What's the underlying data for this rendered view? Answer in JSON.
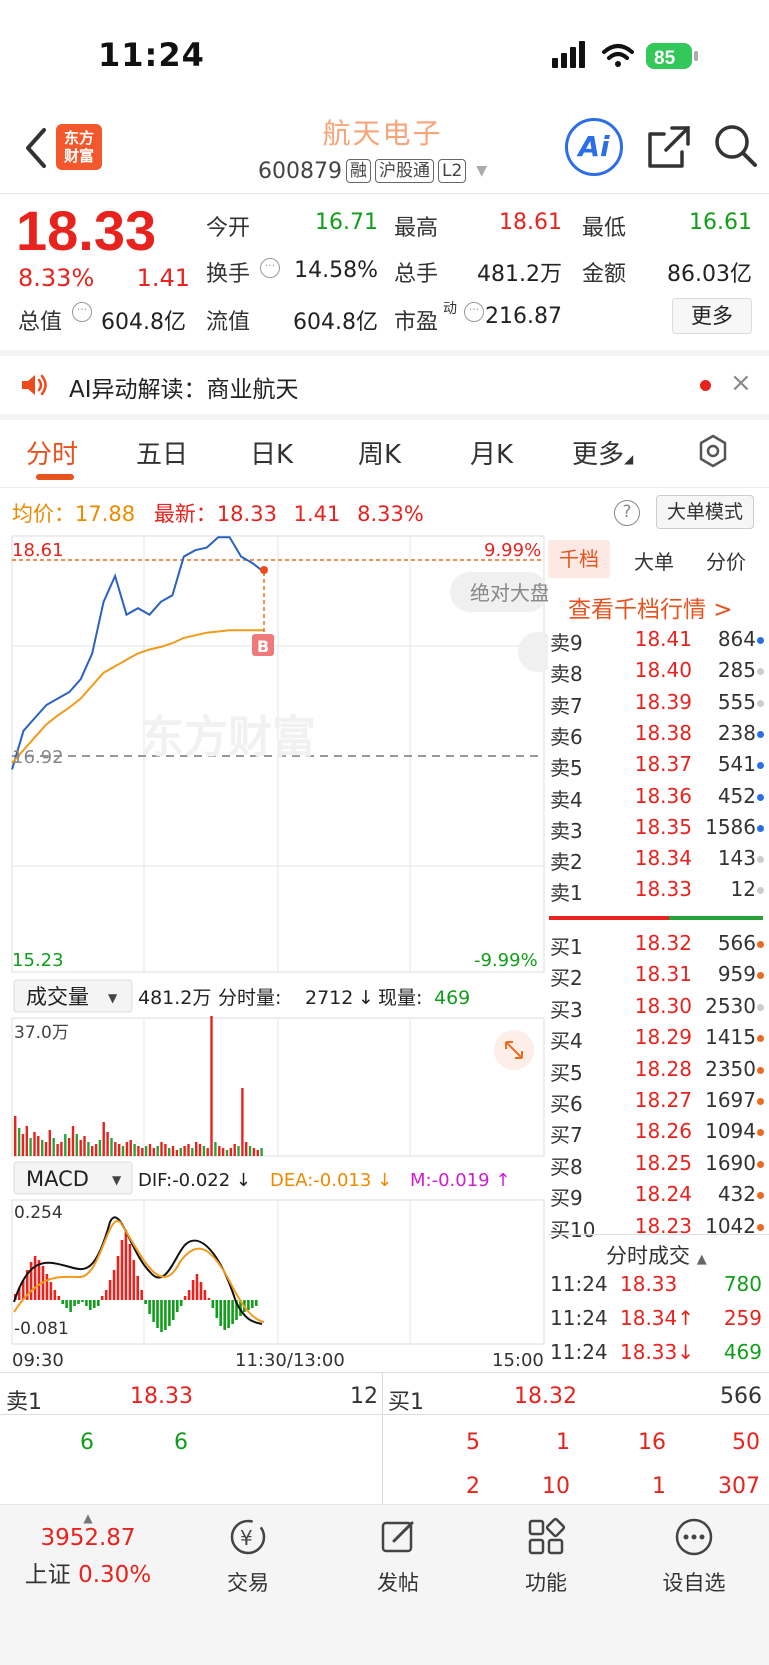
{
  "status": {
    "time": "11:24",
    "battery": "85"
  },
  "header": {
    "logo": [
      "东方",
      "财富"
    ],
    "name": "航天电子",
    "code": "600879",
    "tags": [
      "融",
      "沪股通",
      "L2"
    ]
  },
  "quote": {
    "price": "18.33",
    "change_pct": "8.33%",
    "change": "1.41",
    "fields": [
      {
        "label": "今开",
        "value": "16.71",
        "color": "green"
      },
      {
        "label": "最高",
        "value": "18.61",
        "color": "red"
      },
      {
        "label": "最低",
        "value": "16.61",
        "color": "green"
      },
      {
        "label": "换手",
        "value": "14.58%",
        "color": "black"
      },
      {
        "label": "总手",
        "value": "481.2万",
        "color": "black"
      },
      {
        "label": "金额",
        "value": "86.03亿",
        "color": "black"
      },
      {
        "label": "总值",
        "value": "604.8亿",
        "color": "black"
      },
      {
        "label": "流值",
        "value": "604.8亿",
        "color": "black"
      },
      {
        "label": "市盈",
        "value": "216.87",
        "color": "black"
      }
    ],
    "pe_sup": "动",
    "more_label": "更多"
  },
  "ai_bar": {
    "text": "AI异动解读：商业航天",
    "close": "×"
  },
  "tabs": [
    "分时",
    "五日",
    "日K",
    "周K",
    "月K",
    "更多"
  ],
  "info": {
    "avg_label": "均价：",
    "avg_value": "17.88",
    "latest_label": "最新：",
    "latest_value": "18.33",
    "latest_chg": "1.41",
    "latest_pct": "8.33%",
    "help": "?",
    "big_order_mode": "大单模式"
  },
  "chart": {
    "high_label": "18.61",
    "high_pct": "9.99%",
    "mid_label": "16.92",
    "low_label": "15.23",
    "low_pct": "-9.99%",
    "watermark": "东方财富",
    "float_btn": "绝对大盘",
    "b_marker": "B",
    "vol_selector": "成交量",
    "vol_total": "481.2万",
    "vol_bar_label": "分时量:",
    "vol_bar_value": "2712",
    "vol_now_label": "现量:",
    "vol_now_value": "469",
    "vol_max": "37.0万",
    "macd_selector": "MACD",
    "dif": "DIF:-0.022 ↓",
    "dea": "DEA:-0.013 ↓",
    "m": "M:-0.019 ↑",
    "macd_max": "0.254",
    "macd_min": "-0.081",
    "time_start": "09:30",
    "time_mid": "11:30/13:00",
    "time_end": "15:00"
  },
  "chart_data": {
    "type": "line",
    "y_range": [
      15.23,
      18.61
    ],
    "prev_close": 16.92,
    "series": [
      {
        "name": "price",
        "values": [
          16.8,
          17.1,
          17.2,
          17.3,
          17.35,
          17.4,
          17.5,
          17.7,
          18.1,
          18.3,
          18.0,
          18.05,
          18.0,
          18.1,
          18.15,
          18.45,
          18.5,
          18.52,
          18.6,
          18.6,
          18.45,
          18.4,
          18.33
        ]
      },
      {
        "name": "avg",
        "values": [
          16.85,
          16.95,
          17.05,
          17.15,
          17.22,
          17.28,
          17.35,
          17.45,
          17.55,
          17.6,
          17.65,
          17.7,
          17.73,
          17.75,
          17.78,
          17.82,
          17.84,
          17.86,
          17.87,
          17.88,
          17.88,
          17.88,
          17.88
        ]
      }
    ]
  },
  "orderbook": {
    "tabs": [
      "千档",
      "大单",
      "分价"
    ],
    "link": "查看千档行情 >",
    "asks": [
      {
        "label": "卖9",
        "price": "18.41",
        "vol": "864",
        "dot": "#2c6ee8"
      },
      {
        "label": "卖8",
        "price": "18.40",
        "vol": "285",
        "dot": "#cccccc"
      },
      {
        "label": "卖7",
        "price": "18.39",
        "vol": "555",
        "dot": "#cccccc"
      },
      {
        "label": "卖6",
        "price": "18.38",
        "vol": "238",
        "dot": "#2c6ee8"
      },
      {
        "label": "卖5",
        "price": "18.37",
        "vol": "541",
        "dot": "#2c6ee8"
      },
      {
        "label": "卖4",
        "price": "18.36",
        "vol": "452",
        "dot": "#2c6ee8"
      },
      {
        "label": "卖3",
        "price": "18.35",
        "vol": "1586",
        "dot": "#2c6ee8"
      },
      {
        "label": "卖2",
        "price": "18.34",
        "vol": "143",
        "dot": "#cccccc"
      },
      {
        "label": "卖1",
        "price": "18.33",
        "vol": "12",
        "dot": "#cccccc"
      }
    ],
    "bids": [
      {
        "label": "买1",
        "price": "18.32",
        "vol": "566",
        "dot": "#ee6a1e"
      },
      {
        "label": "买2",
        "price": "18.31",
        "vol": "959",
        "dot": "#ee6a1e"
      },
      {
        "label": "买3",
        "price": "18.30",
        "vol": "2530",
        "dot": "#cccccc"
      },
      {
        "label": "买4",
        "price": "18.29",
        "vol": "1415",
        "dot": "#ee6a1e"
      },
      {
        "label": "买5",
        "price": "18.28",
        "vol": "2350",
        "dot": "#ee6a1e"
      },
      {
        "label": "买6",
        "price": "18.27",
        "vol": "1697",
        "dot": "#ee6a1e"
      },
      {
        "label": "买7",
        "price": "18.26",
        "vol": "1094",
        "dot": "#ee6a1e"
      },
      {
        "label": "买8",
        "price": "18.25",
        "vol": "1690",
        "dot": "#ee6a1e"
      },
      {
        "label": "买9",
        "price": "18.24",
        "vol": "432",
        "dot": "#ee6a1e"
      },
      {
        "label": "买10",
        "price": "18.23",
        "vol": "1042",
        "dot": "#ee6a1e"
      }
    ],
    "ticks_title": "分时成交",
    "ticks": [
      {
        "time": "11:24",
        "price": "18.33",
        "vol": "780",
        "vcolor": "green"
      },
      {
        "time": "11:24",
        "price": "18.34↑",
        "vol": "259",
        "vcolor": "red"
      },
      {
        "time": "11:24",
        "price": "18.33↓",
        "vol": "469",
        "vcolor": "green"
      }
    ]
  },
  "bottom_book": {
    "ask_label": "卖1",
    "ask_price": "18.33",
    "ask_vol": "12",
    "bid_label": "买1",
    "bid_price": "18.32",
    "bid_vol": "566",
    "ask_queue": [
      "6",
      "6"
    ],
    "bid_queue_1": [
      "5",
      "1",
      "16",
      "50"
    ],
    "bid_queue_2": [
      "2",
      "10",
      "1",
      "307"
    ]
  },
  "nav": {
    "index_value": "3952.87",
    "index_name": "上证",
    "index_pct": "0.30%",
    "items": [
      "交易",
      "发帖",
      "功能",
      "设自选"
    ]
  }
}
